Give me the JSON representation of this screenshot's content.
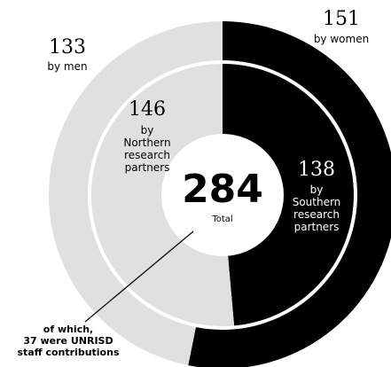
{
  "chart_data": {
    "type": "pie",
    "subtype": "nested-donut",
    "total": {
      "value": "284",
      "label": "Total"
    },
    "outer_ring": [
      {
        "value": 151,
        "value_label": "151",
        "label": "by women",
        "color": "#000000"
      },
      {
        "value": 133,
        "value_label": "133",
        "label": "by men",
        "color": "#e0e0e0"
      }
    ],
    "inner_ring": [
      {
        "value": 138,
        "value_label": "138",
        "label_lines": [
          "by",
          "Southern",
          "research",
          "partners"
        ],
        "color": "#000000",
        "text_color": "#ffffff"
      },
      {
        "value": 146,
        "value_label": "146",
        "label_lines": [
          "by",
          "Northern",
          "research",
          "partners"
        ],
        "color": "#e0e0e0",
        "text_color": "#000000"
      }
    ],
    "annotation": {
      "lines": [
        "of which,",
        "37 were UNRISD",
        "staff contributions"
      ]
    }
  }
}
